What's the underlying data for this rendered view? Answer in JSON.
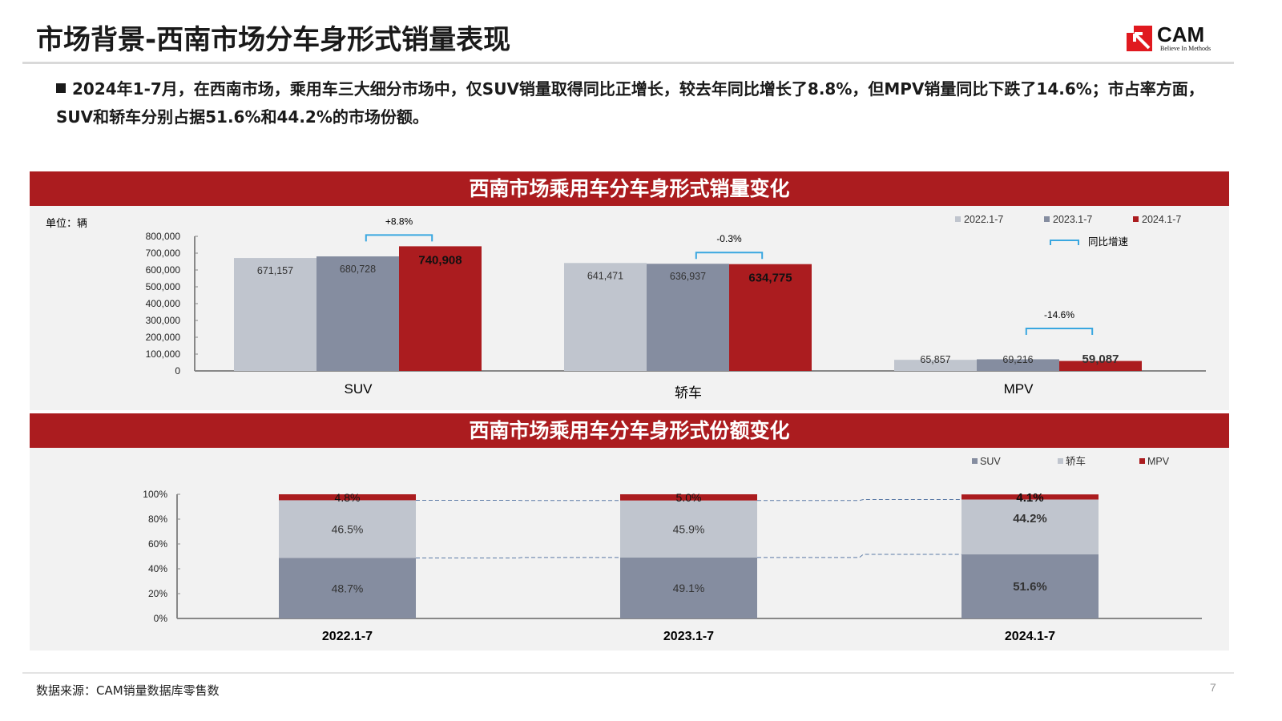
{
  "header": {
    "title": "市场背景-西南市场分车身形式销量表现",
    "logo_text": "CAM",
    "logo_tagline": "Believe in Methods"
  },
  "summary": "2024年1-7月，在西南市场，乘用车三大细分市场中，仅SUV销量取得同比正增长，较去年同比增长了8.8%，但MPV销量同比下跌了14.6%；市占率方面，SUV和轿车分别占据51.6%和44.2%的市场份额。",
  "colors": {
    "c2022": "#c0c5ce",
    "c2023": "#858da0",
    "c2024": "#ab1c1f",
    "bracket": "#3aa7e0",
    "banner": "#ab1c1f"
  },
  "chart_data": [
    {
      "type": "bar",
      "title": "西南市场乘用车分车身形式销量变化",
      "unit_label": "单位：辆",
      "categories": [
        "SUV",
        "轿车",
        "MPV"
      ],
      "series": [
        {
          "name": "2022.1-7",
          "values": [
            671157,
            641471,
            65857
          ]
        },
        {
          "name": "2023.1-7",
          "values": [
            680728,
            636937,
            69216
          ]
        },
        {
          "name": "2024.1-7",
          "values": [
            740908,
            634775,
            59087
          ]
        }
      ],
      "yoy": [
        "+8.8%",
        "-0.3%",
        "-14.6%"
      ],
      "yoy_legend": "同比增速",
      "ylim": [
        0,
        800000
      ],
      "yticks": [
        "0",
        "100,000",
        "200,000",
        "300,000",
        "400,000",
        "500,000",
        "600,000",
        "700,000",
        "800,000"
      ],
      "legend": "top-right"
    },
    {
      "type": "bar",
      "stacked": true,
      "title": "西南市场乘用车分车身形式份额变化",
      "categories": [
        "2022.1-7",
        "2023.1-7",
        "2024.1-7"
      ],
      "series": [
        {
          "name": "SUV",
          "values": [
            48.7,
            49.1,
            51.6
          ]
        },
        {
          "name": "轿车",
          "values": [
            46.5,
            45.9,
            44.2
          ]
        },
        {
          "name": "MPV",
          "values": [
            4.8,
            5.0,
            4.1
          ]
        }
      ],
      "ylim": [
        0,
        100
      ],
      "yticks": [
        "0%",
        "20%",
        "40%",
        "60%",
        "80%",
        "100%"
      ],
      "legend": "top-right"
    }
  ],
  "footer": {
    "source": "数据来源：CAM销量数据库零售数",
    "page": "7"
  }
}
